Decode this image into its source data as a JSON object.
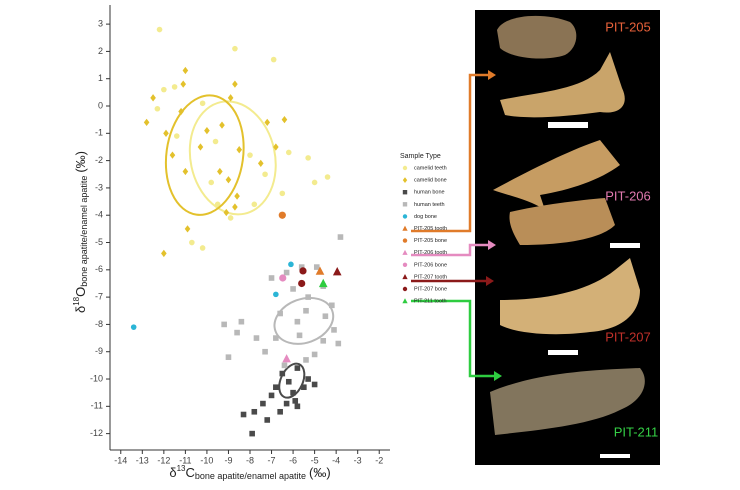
{
  "chart_data": {
    "type": "scatter",
    "x_label": {
      "prefix": "δ",
      "sup": "13",
      "element": "C",
      "sub": "bone apatite/enamel apatite",
      "unit": "(‰)"
    },
    "y_label": {
      "prefix": "δ",
      "sup": "18",
      "element": "O",
      "sub": "bone apatite/enamel apatite",
      "unit": "(‰)"
    },
    "xlim": [
      -14.5,
      -1.5
    ],
    "ylim": [
      -12.6,
      3.7
    ],
    "xticks": [
      -14,
      -13,
      -12,
      -11,
      -10,
      -9,
      -8,
      -7,
      -6,
      -5,
      -4,
      -3,
      -2
    ],
    "yticks": [
      3,
      2,
      1,
      0,
      -1,
      -2,
      -3,
      -4,
      -5,
      -6,
      -7,
      -8,
      -9,
      -10,
      -11,
      -12
    ],
    "legend_title": "Sample Type",
    "series": [
      {
        "name": "camelid teeth",
        "color": "#f3eb8f",
        "marker": "circle",
        "x": [
          -12.2,
          -8.7,
          -6.9,
          -11.5,
          -12.0,
          -10.2,
          -11.4,
          -9.6,
          -8.0,
          -7.3,
          -6.2,
          -5.3,
          -5.0,
          -4.4,
          -6.5,
          -10.7,
          -10.2,
          -9.5,
          -8.9,
          -9.8,
          -7.8,
          -12.3
        ],
        "y": [
          2.8,
          2.1,
          1.7,
          0.7,
          0.6,
          0.1,
          -1.1,
          -1.3,
          -1.8,
          -2.5,
          -1.7,
          -1.9,
          -2.8,
          -2.6,
          -3.2,
          -5.0,
          -5.2,
          -3.6,
          -4.1,
          -2.8,
          -3.6,
          -0.1
        ],
        "ellipse": {
          "center": [
            -8.8,
            -1.9
          ],
          "radii": [
            1.96,
            2.09
          ],
          "angle": -12
        }
      },
      {
        "name": "camelid bone",
        "color": "#e3c12c",
        "marker": "diamond",
        "x": [
          -11.0,
          -11.1,
          -12.5,
          -11.2,
          -12.8,
          -10.0,
          -10.3,
          -11.9,
          -11.6,
          -9.3,
          -8.9,
          -8.5,
          -9.0,
          -8.6,
          -8.7,
          -9.1,
          -6.8,
          -7.2,
          -6.4,
          -12.0,
          -10.9,
          -7.5,
          -9.4,
          -8.7,
          -11.0
        ],
        "y": [
          1.3,
          0.8,
          0.3,
          -0.2,
          -0.6,
          -0.9,
          -1.5,
          -1.0,
          -1.8,
          -0.7,
          0.3,
          -1.6,
          -2.7,
          -3.3,
          -3.7,
          -3.9,
          -1.5,
          -0.6,
          -0.5,
          -5.4,
          -4.5,
          -2.1,
          -2.4,
          0.8,
          -2.4
        ],
        "ellipse": {
          "center": [
            -10.1,
            -1.8
          ],
          "radii": [
            1.78,
            2.2
          ],
          "angle": 8
        }
      },
      {
        "name": "human bone",
        "color": "#4a4a4a",
        "marker": "square",
        "x": [
          -6.5,
          -5.8,
          -6.2,
          -5.5,
          -6.0,
          -6.8,
          -5.3,
          -5.9,
          -6.3,
          -7.0,
          -7.4,
          -6.6,
          -7.8,
          -8.3,
          -7.2,
          -7.9,
          -5.8,
          -5.0
        ],
        "y": [
          -9.8,
          -9.6,
          -10.1,
          -10.3,
          -10.5,
          -10.3,
          -10.0,
          -10.8,
          -10.9,
          -10.6,
          -10.9,
          -11.2,
          -11.2,
          -11.3,
          -11.5,
          -12.0,
          -11.0,
          -10.2
        ],
        "ellipse": {
          "center": [
            -6.06,
            -10.06
          ],
          "radii": [
            0.51,
            0.66
          ],
          "angle": 25
        }
      },
      {
        "name": "human teeth",
        "color": "#b8b8b8",
        "marker": "square",
        "x": [
          -3.8,
          -5.6,
          -6.3,
          -4.9,
          -7.0,
          -4.6,
          -6.0,
          -5.3,
          -4.2,
          -5.4,
          -6.6,
          -4.5,
          -5.8,
          -8.4,
          -9.2,
          -8.6,
          -7.7,
          -6.8,
          -5.7,
          -4.6,
          -4.1,
          -7.3,
          -9.0,
          -6.4,
          -5.4,
          -3.9,
          -5.0
        ],
        "y": [
          -4.8,
          -5.9,
          -6.1,
          -5.9,
          -6.3,
          -6.6,
          -6.7,
          -7.0,
          -7.3,
          -7.5,
          -7.6,
          -7.7,
          -7.9,
          -7.9,
          -8.0,
          -8.3,
          -8.5,
          -8.5,
          -8.4,
          -8.6,
          -8.2,
          -9.0,
          -9.2,
          -9.5,
          -9.3,
          -8.7,
          -9.1
        ],
        "ellipse": {
          "center": [
            -5.5,
            -7.87
          ],
          "radii": [
            1.4,
            0.8
          ],
          "angle": -20
        }
      },
      {
        "name": "dog bone",
        "color": "#2bb5d6",
        "marker": "circle",
        "x": [
          -13.4,
          -6.1,
          -6.8
        ],
        "y": [
          -8.1,
          -5.8,
          -6.9
        ]
      },
      {
        "name": "PIT-205 tooth",
        "color": "#e07b2a",
        "marker": "triangle",
        "x": [
          -4.75
        ],
        "y": [
          -6.05
        ]
      },
      {
        "name": "PIT-205 bone",
        "color": "#e07b2a",
        "marker": "circle",
        "x": [
          -6.5
        ],
        "y": [
          -4.0
        ]
      },
      {
        "name": "PIT-206 tooth",
        "color": "#e58bc0",
        "marker": "triangle",
        "x": [
          -6.3
        ],
        "y": [
          -9.26
        ]
      },
      {
        "name": "PIT-206 bone",
        "color": "#e58bc0",
        "marker": "circle",
        "x": [
          -6.48
        ],
        "y": [
          -6.3
        ]
      },
      {
        "name": "PIT-207 tooth",
        "color": "#8b1a1a",
        "marker": "triangle",
        "x": [
          -3.95
        ],
        "y": [
          -6.07
        ]
      },
      {
        "name": "PIT-207 bone",
        "color": "#8b1a1a",
        "marker": "circle",
        "x": [
          -5.54,
          -5.6
        ],
        "y": [
          -6.04,
          -6.5
        ]
      },
      {
        "name": "PIT-211 tooth",
        "color": "#2ecc40",
        "marker": "triangle",
        "x": [
          -4.6
        ],
        "y": [
          -6.5
        ]
      }
    ],
    "specimens": [
      {
        "label": "PIT-205",
        "color": "#e8613a"
      },
      {
        "label": "PIT-206",
        "color": "#e27ab0"
      },
      {
        "label": "PIT-207",
        "color": "#c0302a"
      },
      {
        "label": "PIT-211",
        "color": "#35d046"
      }
    ]
  }
}
